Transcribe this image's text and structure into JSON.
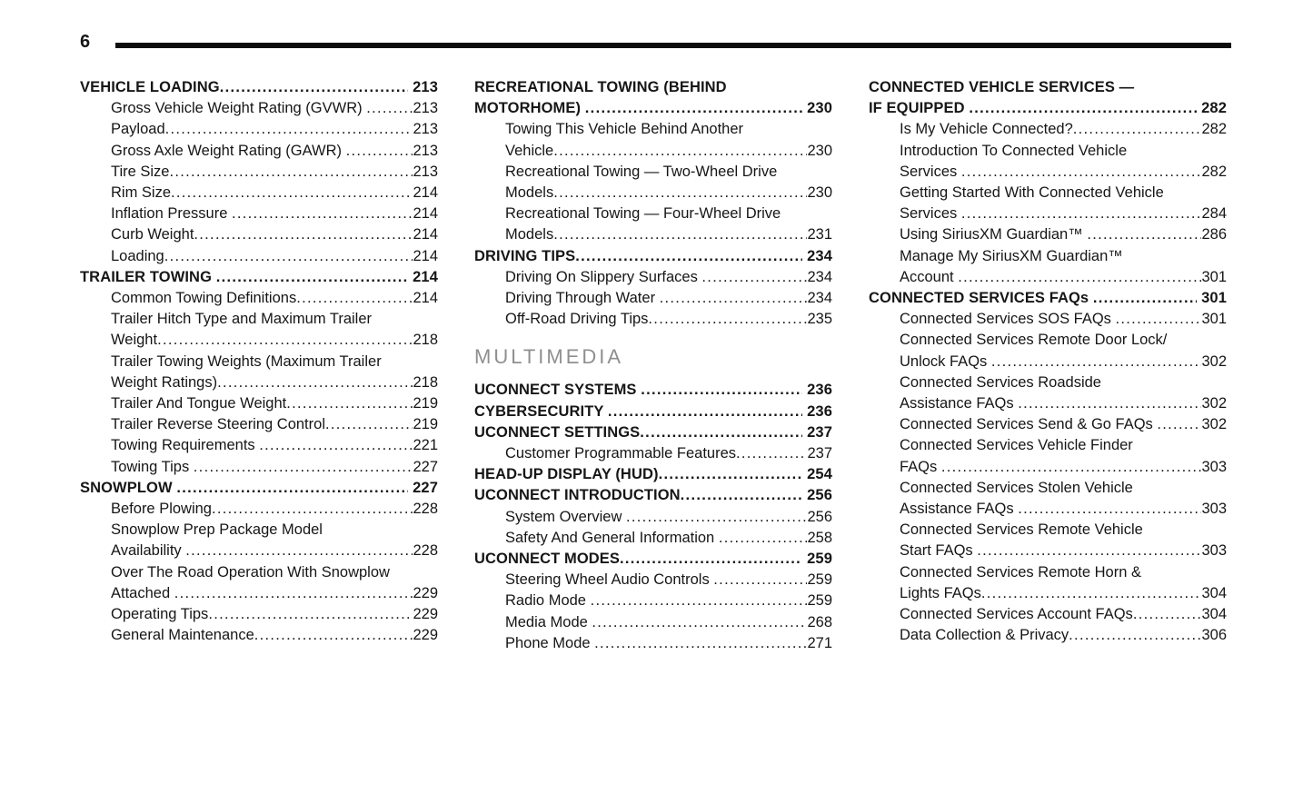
{
  "page_number": "6",
  "colors": {
    "text": "#161616",
    "rule": "#0d0d0d",
    "section_heading": "#8f8f8f"
  },
  "toc": {
    "columns": [
      {
        "items": [
          {
            "type": "chapter",
            "lines": [
              "VEHICLE LOADING"
            ],
            "page": "213"
          },
          {
            "type": "section",
            "lines": [
              "Gross Vehicle Weight Rating (GVWR) "
            ],
            "page": "213"
          },
          {
            "type": "section",
            "lines": [
              "Payload"
            ],
            "page": "213"
          },
          {
            "type": "section",
            "lines": [
              "Gross Axle Weight Rating (GAWR) "
            ],
            "page": "213"
          },
          {
            "type": "section",
            "lines": [
              "Tire Size"
            ],
            "page": "213"
          },
          {
            "type": "section",
            "lines": [
              "Rim Size"
            ],
            "page": "214"
          },
          {
            "type": "section",
            "lines": [
              "Inflation Pressure "
            ],
            "page": "214"
          },
          {
            "type": "section",
            "lines": [
              "Curb Weight"
            ],
            "page": "214"
          },
          {
            "type": "section",
            "lines": [
              "Loading"
            ],
            "page": "214"
          },
          {
            "type": "chapter",
            "lines": [
              "TRAILER TOWING "
            ],
            "page": "214"
          },
          {
            "type": "section",
            "lines": [
              "Common Towing Definitions"
            ],
            "page": "214"
          },
          {
            "type": "section",
            "lines": [
              "Trailer Hitch Type and Maximum Trailer",
              "Weight"
            ],
            "page": "218"
          },
          {
            "type": "section",
            "lines": [
              "Trailer Towing Weights (Maximum Trailer",
              "Weight Ratings)"
            ],
            "page": "218"
          },
          {
            "type": "section",
            "lines": [
              "Trailer And Tongue Weight"
            ],
            "page": "219"
          },
          {
            "type": "section",
            "lines": [
              "Trailer Reverse Steering Control"
            ],
            "page": "219"
          },
          {
            "type": "section",
            "lines": [
              "Towing Requirements "
            ],
            "page": "221"
          },
          {
            "type": "section",
            "lines": [
              "Towing Tips "
            ],
            "page": "227"
          },
          {
            "type": "chapter",
            "lines": [
              "SNOWPLOW "
            ],
            "page": "227"
          },
          {
            "type": "section",
            "lines": [
              "Before Plowing"
            ],
            "page": "228"
          },
          {
            "type": "section",
            "lines": [
              "Snowplow Prep Package Model",
              "Availability "
            ],
            "page": "228"
          },
          {
            "type": "section",
            "lines": [
              "Over The Road Operation With Snowplow",
              "Attached "
            ],
            "page": "229"
          },
          {
            "type": "section",
            "lines": [
              "Operating Tips"
            ],
            "page": "229"
          },
          {
            "type": "section",
            "lines": [
              "General Maintenance"
            ],
            "page": "229"
          }
        ]
      },
      {
        "items": [
          {
            "type": "chapter",
            "lines": [
              "RECREATIONAL TOWING (BEHIND",
              "MOTORHOME) "
            ],
            "page": "230"
          },
          {
            "type": "section",
            "lines": [
              "Towing This Vehicle Behind Another",
              "Vehicle"
            ],
            "page": "230"
          },
          {
            "type": "section",
            "lines": [
              "Recreational Towing — Two-Wheel Drive",
              "Models"
            ],
            "page": "230"
          },
          {
            "type": "section",
            "lines": [
              "Recreational Towing — Four-Wheel Drive",
              "Models"
            ],
            "page": "231"
          },
          {
            "type": "chapter",
            "lines": [
              "DRIVING TIPS"
            ],
            "page": "234"
          },
          {
            "type": "section",
            "lines": [
              "Driving On Slippery Surfaces "
            ],
            "page": "234"
          },
          {
            "type": "section",
            "lines": [
              "Driving Through Water "
            ],
            "page": "234"
          },
          {
            "type": "section",
            "lines": [
              "Off-Road Driving Tips"
            ],
            "page": "235"
          },
          {
            "type": "heading",
            "lines": [
              "MULTIMEDIA"
            ]
          },
          {
            "type": "chapter",
            "lines": [
              "UCONNECT SYSTEMS "
            ],
            "page": "236"
          },
          {
            "type": "chapter",
            "lines": [
              "CYBERSECURITY "
            ],
            "page": "236"
          },
          {
            "type": "chapter",
            "lines": [
              "UCONNECT SETTINGS"
            ],
            "page": "237"
          },
          {
            "type": "section",
            "lines": [
              "Customer Programmable Features"
            ],
            "page": "237"
          },
          {
            "type": "chapter",
            "lines": [
              "HEAD-UP DISPLAY (HUD)"
            ],
            "page": "254"
          },
          {
            "type": "chapter",
            "lines": [
              "UCONNECT INTRODUCTION"
            ],
            "page": "256"
          },
          {
            "type": "section",
            "lines": [
              "System Overview "
            ],
            "page": "256"
          },
          {
            "type": "section",
            "lines": [
              "Safety And General Information "
            ],
            "page": "258"
          },
          {
            "type": "chapter",
            "lines": [
              "UCONNECT MODES"
            ],
            "page": "259"
          },
          {
            "type": "section",
            "lines": [
              "Steering Wheel Audio Controls "
            ],
            "page": "259"
          },
          {
            "type": "section",
            "lines": [
              "Radio Mode "
            ],
            "page": "259"
          },
          {
            "type": "section",
            "lines": [
              "Media Mode "
            ],
            "page": "268"
          },
          {
            "type": "section",
            "lines": [
              "Phone Mode "
            ],
            "page": "271"
          }
        ]
      },
      {
        "items": [
          {
            "type": "chapter",
            "lines": [
              "CONNECTED VEHICLE SERVICES —",
              "IF EQUIPPED "
            ],
            "page": "282"
          },
          {
            "type": "section",
            "lines": [
              "Is My Vehicle Connected?"
            ],
            "page": "282"
          },
          {
            "type": "section",
            "lines": [
              "Introduction To Connected Vehicle",
              "Services "
            ],
            "page": "282"
          },
          {
            "type": "section",
            "lines": [
              "Getting Started With Connected Vehicle",
              "Services "
            ],
            "page": "284"
          },
          {
            "type": "section",
            "lines": [
              "Using SiriusXM Guardian™ "
            ],
            "page": "286"
          },
          {
            "type": "section",
            "lines": [
              "Manage My SiriusXM Guardian™",
              "Account "
            ],
            "page": "301"
          },
          {
            "type": "chapter",
            "lines": [
              "CONNECTED SERVICES FAQs "
            ],
            "page": "301"
          },
          {
            "type": "section",
            "lines": [
              "Connected Services SOS FAQs "
            ],
            "page": "301"
          },
          {
            "type": "section",
            "lines": [
              "Connected Services Remote Door Lock/",
              "Unlock FAQs "
            ],
            "page": "302"
          },
          {
            "type": "section",
            "lines": [
              "Connected Services Roadside",
              "Assistance FAQs "
            ],
            "page": "302"
          },
          {
            "type": "section",
            "lines": [
              "Connected Services Send & Go FAQs "
            ],
            "page": "302"
          },
          {
            "type": "section",
            "lines": [
              "Connected Services Vehicle Finder",
              "FAQs "
            ],
            "page": "303"
          },
          {
            "type": "section",
            "lines": [
              "Connected Services Stolen Vehicle",
              "Assistance FAQs "
            ],
            "page": "303"
          },
          {
            "type": "section",
            "lines": [
              "Connected Services Remote Vehicle",
              "Start FAQs "
            ],
            "page": "303"
          },
          {
            "type": "section",
            "lines": [
              "Connected Services Remote Horn &",
              "Lights FAQs"
            ],
            "page": "304"
          },
          {
            "type": "section",
            "lines": [
              "Connected Services Account FAQs"
            ],
            "page": "304"
          },
          {
            "type": "section",
            "lines": [
              "Data Collection & Privacy"
            ],
            "page": "306"
          }
        ]
      }
    ]
  }
}
